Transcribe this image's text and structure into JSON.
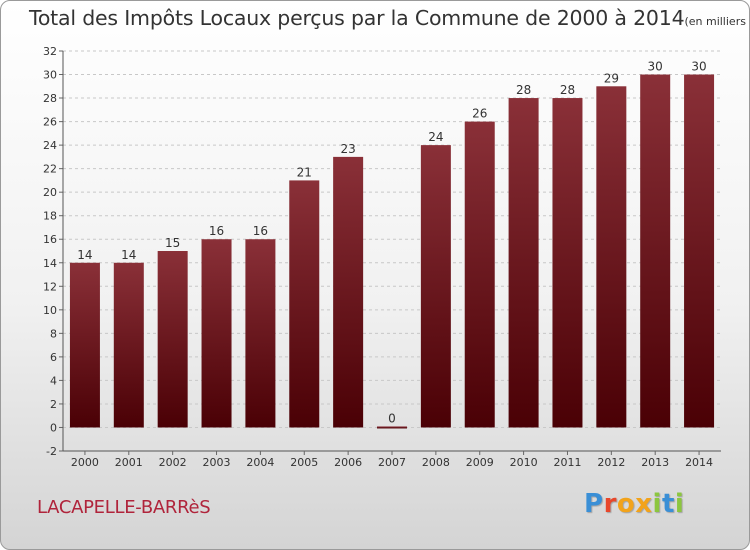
{
  "title": {
    "main": "Total des Impôts Locaux perçus par la Commune de 2000 à 2014",
    "unit": "(en milliers d'€)"
  },
  "commune": "LACAPELLE-BARRèS",
  "brand": {
    "letters": [
      "P",
      "r",
      "o",
      "x",
      "i",
      "t",
      "i"
    ],
    "colors": [
      "#3a8fd6",
      "#e8472b",
      "#f2a31b",
      "#f2a31b",
      "#8cc63f",
      "#3a8fd6",
      "#8cc63f"
    ]
  },
  "colors": {
    "bar_top": "#8a3038",
    "bar_bottom": "#4a0005",
    "label_color": "#333333",
    "commune_color": "#b0243b"
  },
  "chart_data": {
    "type": "bar",
    "categories": [
      "2000",
      "2001",
      "2002",
      "2003",
      "2004",
      "2005",
      "2006",
      "2007",
      "2008",
      "2009",
      "2010",
      "2011",
      "2012",
      "2013",
      "2014"
    ],
    "values": [
      14,
      14,
      15,
      16,
      16,
      21,
      23,
      0,
      24,
      26,
      28,
      28,
      29,
      30,
      30
    ],
    "ylim": [
      -2,
      32
    ],
    "yticks": [
      -2,
      0,
      2,
      4,
      6,
      8,
      10,
      12,
      14,
      16,
      18,
      20,
      22,
      24,
      26,
      28,
      30,
      32
    ],
    "grid": "horizontal dashed",
    "legend": "none"
  }
}
